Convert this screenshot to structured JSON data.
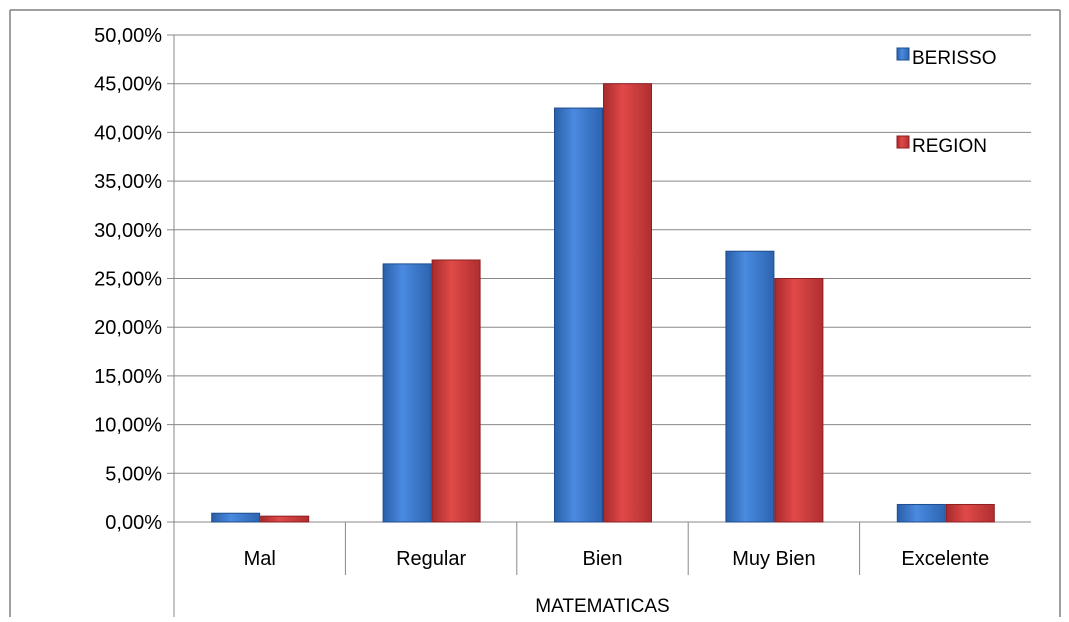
{
  "chart_data": {
    "type": "bar",
    "title": "",
    "xlabel": "",
    "ylabel": "",
    "categories": [
      "Mal",
      "Regular",
      "Bien",
      "Muy Bien",
      "Excelente"
    ],
    "group_label": "MATEMATICAS",
    "series": [
      {
        "name": "BERISSO",
        "values": [
          0.9,
          26.5,
          42.5,
          27.8,
          1.8
        ],
        "color": "#3c78c8"
      },
      {
        "name": "REGION",
        "values": [
          0.6,
          26.9,
          45.0,
          25.0,
          1.8
        ],
        "color": "#c8383a"
      }
    ],
    "ylim": [
      0,
      50
    ],
    "yticks": [
      "0,00%",
      "5,00%",
      "10,00%",
      "15,00%",
      "20,00%",
      "25,00%",
      "30,00%",
      "35,00%",
      "40,00%",
      "45,00%",
      "50,00%"
    ],
    "grid": true,
    "legend_position": "top-right"
  }
}
